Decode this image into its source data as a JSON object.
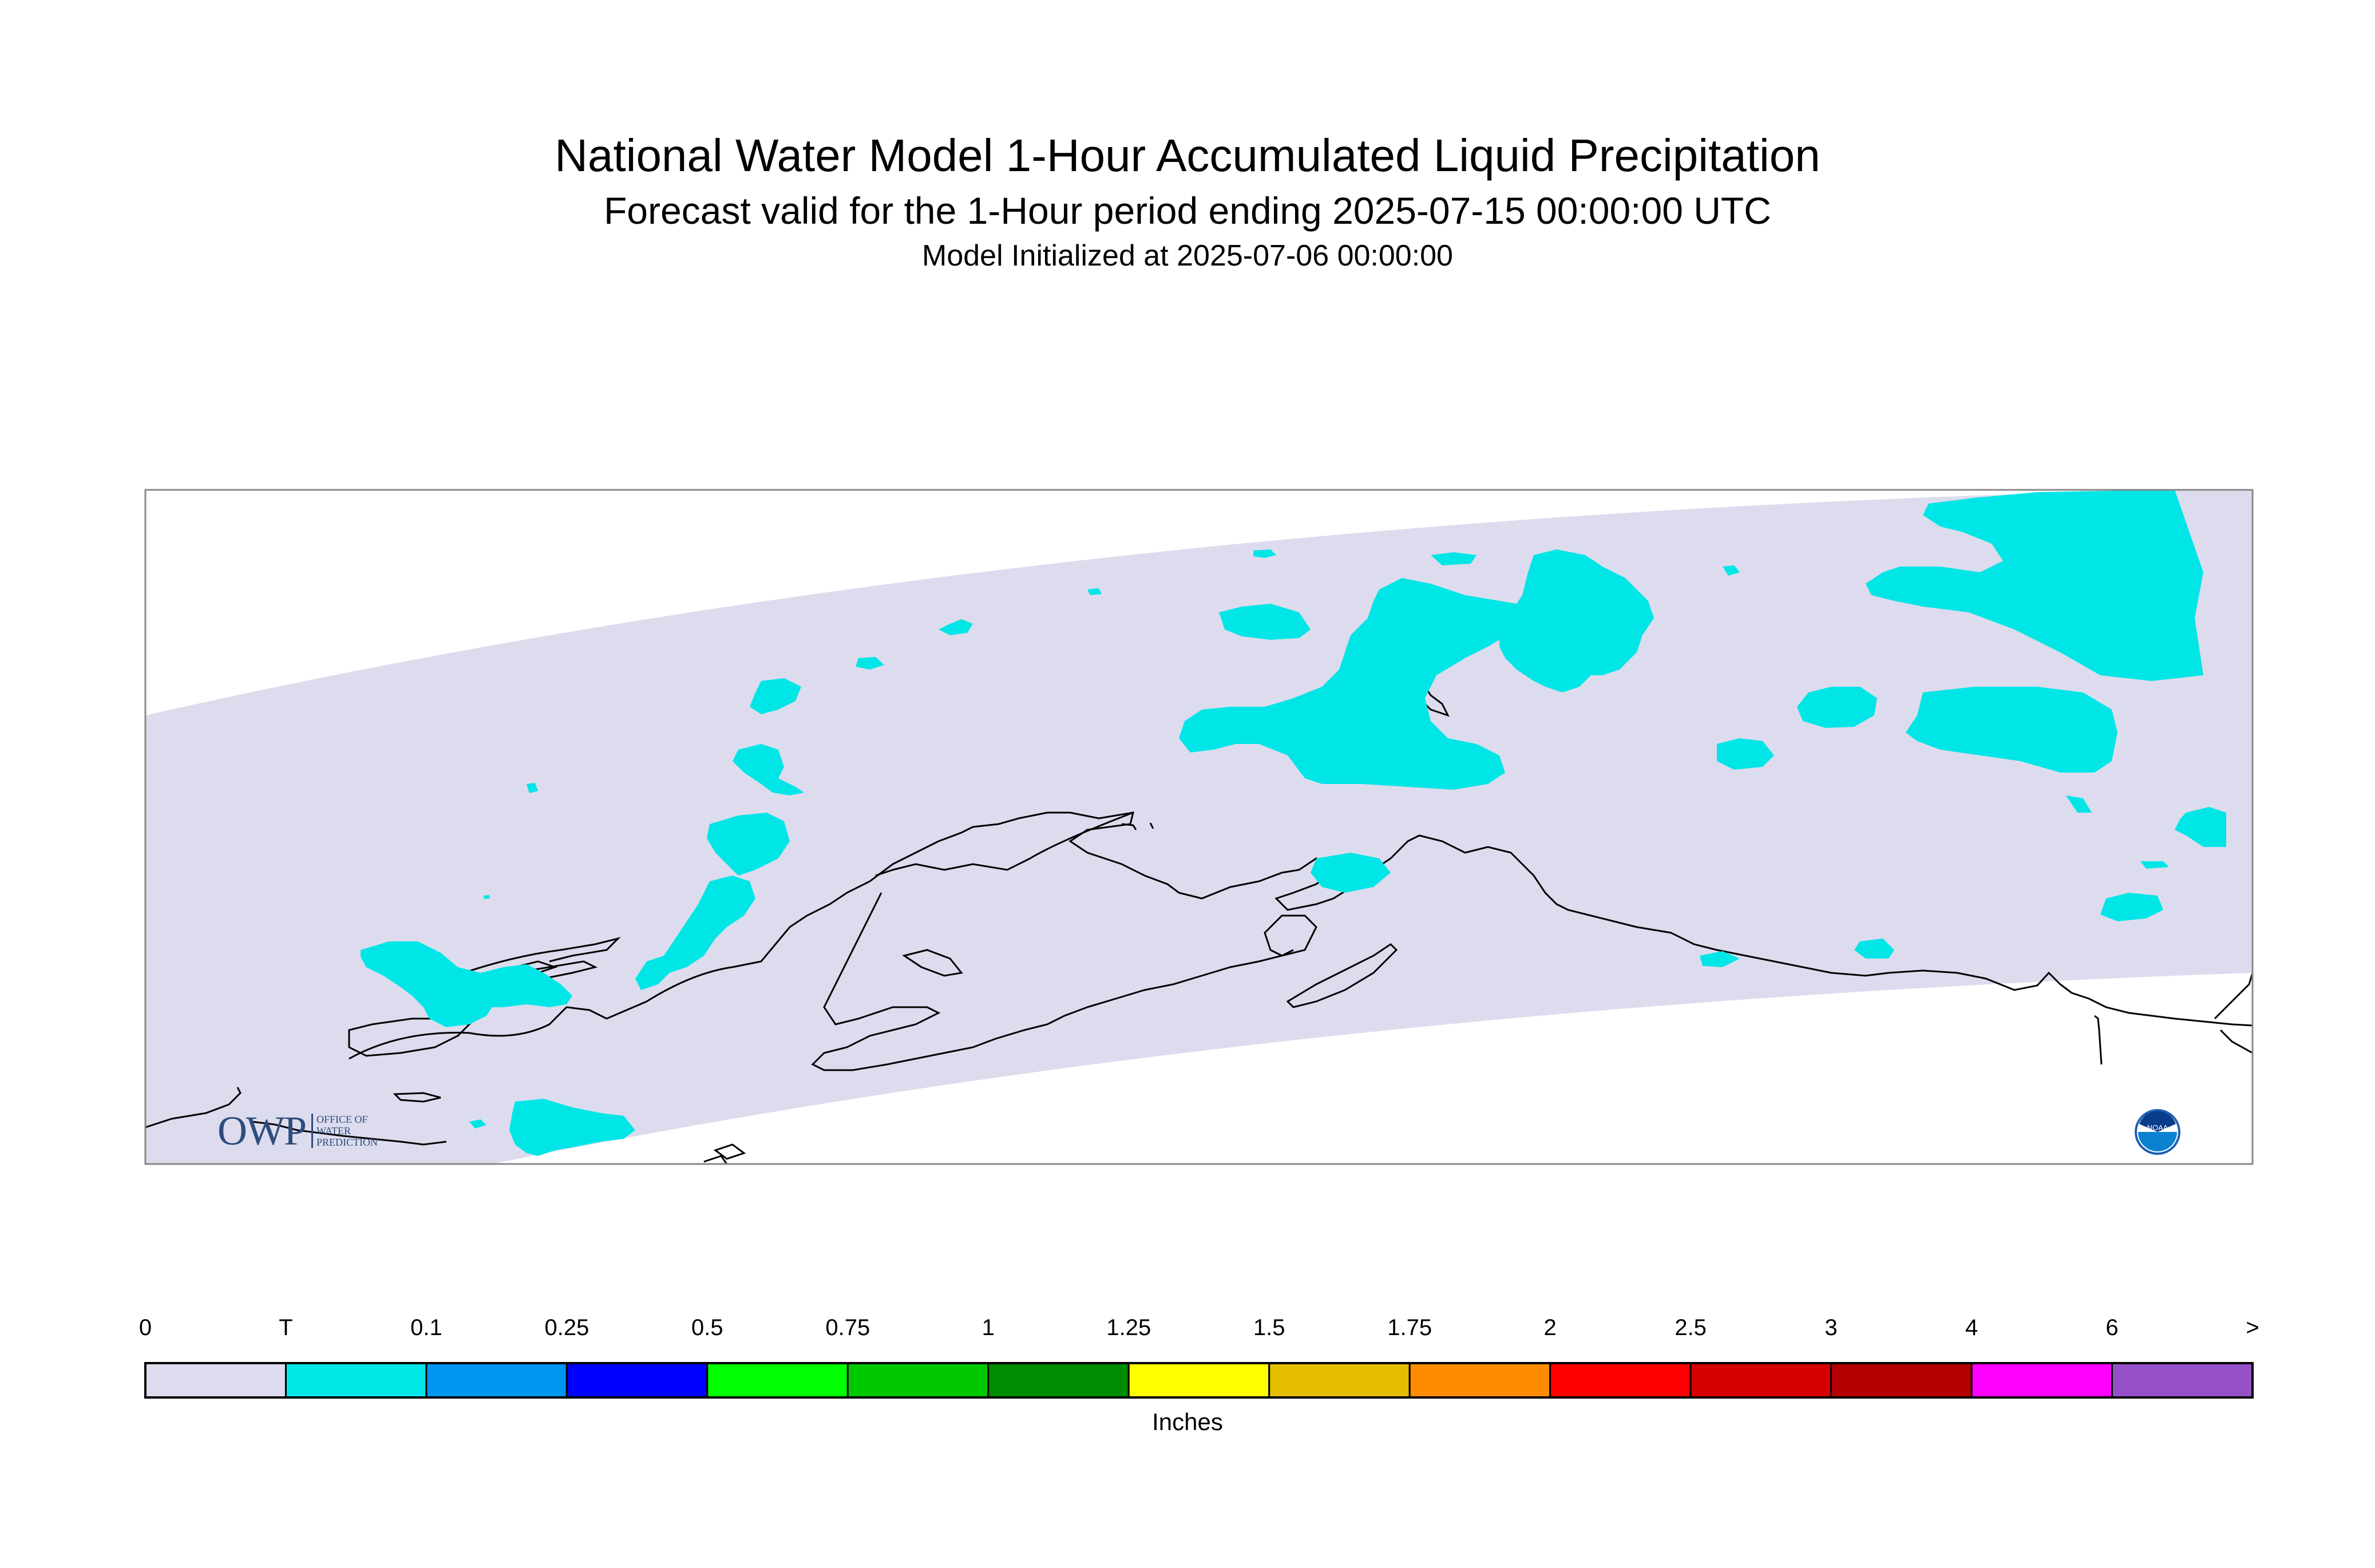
{
  "header": {
    "title": "National Water Model 1-Hour Accumulated Liquid Precipitation",
    "subtitle": "Forecast valid for the 1-Hour period ending 2025-07-15 00:00:00 UTC",
    "initialized": "Model Initialized at 2025-07-06 00:00:00"
  },
  "map": {
    "domain_color": "#dcdcee",
    "precip_color": "#00e6e6",
    "coastline_color": "#000000"
  },
  "logos": {
    "owp": {
      "mark": "OWP",
      "line1": "OFFICE OF",
      "line2": "WATER",
      "line3": "PREDICTION"
    },
    "noaa": {
      "text": "NOAA",
      "icon": "noaa-logo"
    }
  },
  "legend": {
    "units": "Inches",
    "bins": [
      {
        "label": "0",
        "color": "#dcdcee"
      },
      {
        "label": "T",
        "color": "#00e6e6"
      },
      {
        "label": "0.1",
        "color": "#0096f0"
      },
      {
        "label": "0.25",
        "color": "#0000ff"
      },
      {
        "label": "0.5",
        "color": "#00ff00"
      },
      {
        "label": "0.75",
        "color": "#00c800"
      },
      {
        "label": "1",
        "color": "#008c00"
      },
      {
        "label": "1.25",
        "color": "#ffff00"
      },
      {
        "label": "1.5",
        "color": "#e6be00"
      },
      {
        "label": "1.75",
        "color": "#ff8c00"
      },
      {
        "label": "2",
        "color": "#ff0000"
      },
      {
        "label": "2.5",
        "color": "#d70000"
      },
      {
        "label": "3",
        "color": "#b40000"
      },
      {
        "label": "4",
        "color": "#ff00ff"
      },
      {
        "label": "6",
        "color": "#9650c8"
      }
    ],
    "end_label": ">"
  }
}
